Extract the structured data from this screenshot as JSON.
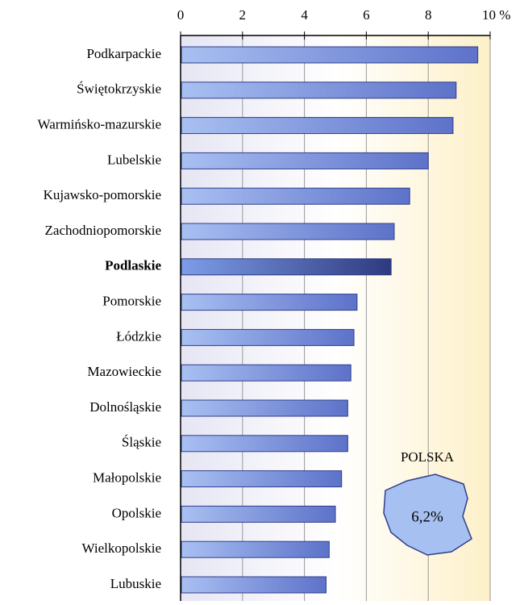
{
  "chart_data": {
    "type": "bar",
    "orientation": "horizontal",
    "categories": [
      "Podkarpackie",
      "Świętokrzyskie",
      "Warmińsko-mazurskie",
      "Lubelskie",
      "Kujawsko-pomorskie",
      "Zachodniopomorskie",
      "Podlaskie",
      "Pomorskie",
      "Łódzkie",
      "Mazowieckie",
      "Dolnośląskie",
      "Śląskie",
      "Małopolskie",
      "Opolskie",
      "Wielkopolskie",
      "Lubuskie"
    ],
    "values": [
      9.6,
      8.9,
      8.8,
      8.0,
      7.4,
      6.9,
      6.8,
      5.7,
      5.6,
      5.5,
      5.4,
      5.4,
      5.2,
      5.0,
      4.8,
      4.7
    ],
    "color": "#5d72c9",
    "highlight": "Podlaskie",
    "highlight_color": "#2e3a80",
    "xlim": [
      0,
      10
    ],
    "xticks": [
      0,
      2,
      4,
      6,
      8,
      {
        "value": 10,
        "label": "10 %"
      }
    ],
    "grid": true,
    "annotations": [
      "POLSKA",
      "6,2%"
    ]
  }
}
